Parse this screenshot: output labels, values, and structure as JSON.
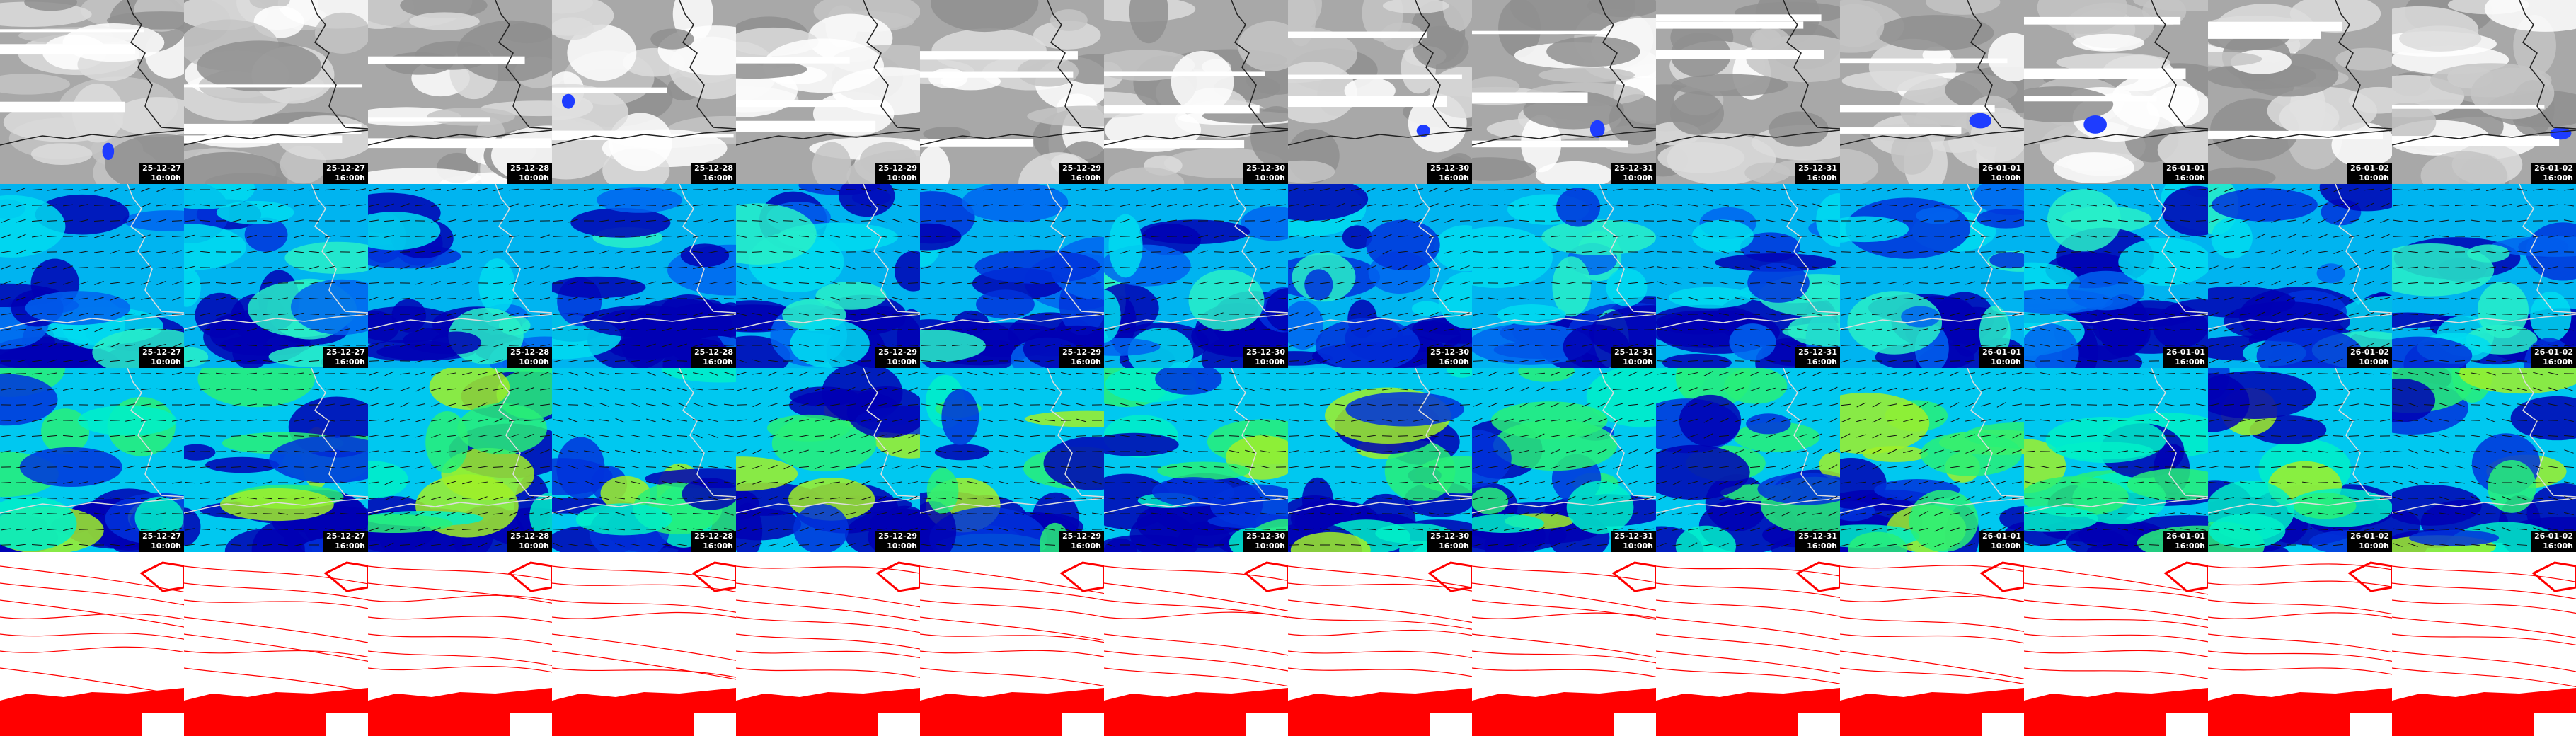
{
  "columns": [
    {
      "date": "25-12-27",
      "time": "10:00h"
    },
    {
      "date": "25-12-27",
      "time": "16:00h"
    },
    {
      "date": "25-12-28",
      "time": "10:00h"
    },
    {
      "date": "25-12-28",
      "time": "16:00h"
    },
    {
      "date": "25-12-29",
      "time": "10:00h"
    },
    {
      "date": "25-12-29",
      "time": "16:00h"
    },
    {
      "date": "25-12-30",
      "time": "10:00h"
    },
    {
      "date": "25-12-30",
      "time": "16:00h"
    },
    {
      "date": "25-12-31",
      "time": "10:00h"
    },
    {
      "date": "25-12-31",
      "time": "16:00h"
    },
    {
      "date": "26-01-01",
      "time": "10:00h"
    },
    {
      "date": "26-01-01",
      "time": "16:00h"
    },
    {
      "date": "26-01-02",
      "time": "10:00h"
    },
    {
      "date": "26-01-02",
      "time": "16:00h"
    }
  ]
}
